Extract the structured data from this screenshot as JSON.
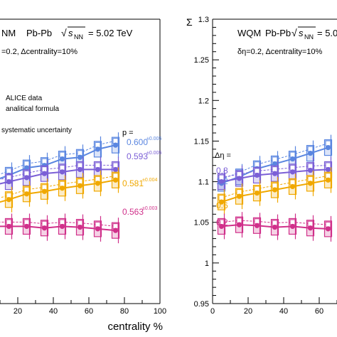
{
  "chart_data": [
    {
      "type": "scatter",
      "panel": "left",
      "title_model": "NM",
      "title_system": "Pb-Pb",
      "energy_label": "= 5.02 TeV",
      "params": "=0.2, Δcentrality=10%",
      "legend": [
        "ALICE data",
        "analitical formula",
        "systematic uncertainty"
      ],
      "p_header": "p =",
      "series_labels": [
        {
          "value": "0.600",
          "unc": "±0.005",
          "color": "#5a86e0"
        },
        {
          "value": "0.593",
          "unc": "±0.005",
          "color": "#7b5fd6"
        },
        {
          "value": "0.581",
          "unc": "±0.004",
          "color": "#f0a800"
        },
        {
          "value": "0.563",
          "unc": "±0.003",
          "color": "#d0308a"
        }
      ],
      "xlabel": "centrality %",
      "xticks": [
        "20",
        "40",
        "60",
        "80",
        "100"
      ],
      "xlim": [
        0,
        100
      ],
      "ylim": [
        0.95,
        1.3
      ],
      "series": [
        {
          "name": "0.600",
          "color": "#5a86e0",
          "x": [
            5,
            15,
            25,
            35,
            45,
            55,
            65,
            75
          ],
          "y": [
            1.1,
            1.108,
            1.117,
            1.12,
            1.128,
            1.13,
            1.14,
            1.145
          ]
        },
        {
          "name": "0.593",
          "color": "#7b5fd6",
          "x": [
            5,
            15,
            25,
            35,
            45,
            55,
            65,
            75
          ],
          "y": [
            1.095,
            1.1,
            1.105,
            1.11,
            1.112,
            1.115,
            1.115,
            1.115
          ]
        },
        {
          "name": "0.581",
          "color": "#f0a800",
          "x": [
            5,
            15,
            25,
            35,
            45,
            55,
            65,
            75
          ],
          "y": [
            1.072,
            1.078,
            1.085,
            1.088,
            1.092,
            1.095,
            1.098,
            1.102
          ]
        },
        {
          "name": "0.563",
          "color": "#d0308a",
          "x": [
            5,
            15,
            25,
            35,
            45,
            55,
            65,
            75
          ],
          "y": [
            1.045,
            1.045,
            1.045,
            1.043,
            1.045,
            1.044,
            1.042,
            1.04
          ]
        }
      ]
    },
    {
      "type": "scatter",
      "panel": "right",
      "title_model": "WQM",
      "title_system": "Pb-Pb",
      "energy_label": "= 5.02",
      "params": "δη=0.2, Δcentrality=10%",
      "ylabel": "Σ",
      "yticks": [
        "0.95",
        "1",
        "1.05",
        "1.1",
        "1.15",
        "1.2",
        "1.25",
        "1.3"
      ],
      "ylim": [
        0.95,
        1.3
      ],
      "xticks": [
        "0",
        "20",
        "40",
        "60"
      ],
      "xlim": [
        0,
        100
      ],
      "deta_header": "Δη =",
      "series_labels": [
        {
          "value": "0.8",
          "color": "#7b5fd6"
        },
        {
          "value": "1.2",
          "color": "#5a86e0"
        },
        {
          "value": "0.6",
          "color": "#f0a800"
        },
        {
          "value": "0.2",
          "color": "#d0308a"
        }
      ],
      "series": [
        {
          "name": "1.2",
          "color": "#5a86e0",
          "x": [
            5,
            15,
            25,
            35,
            45,
            55,
            65
          ],
          "y": [
            1.098,
            1.106,
            1.116,
            1.122,
            1.128,
            1.135,
            1.142
          ]
        },
        {
          "name": "0.8",
          "color": "#7b5fd6",
          "x": [
            5,
            15,
            25,
            35,
            45,
            55,
            65
          ],
          "y": [
            1.1,
            1.104,
            1.108,
            1.11,
            1.112,
            1.114,
            1.115
          ]
        },
        {
          "name": "0.6",
          "color": "#f0a800",
          "x": [
            5,
            15,
            25,
            35,
            45,
            55,
            65
          ],
          "y": [
            1.075,
            1.082,
            1.086,
            1.09,
            1.094,
            1.098,
            1.102
          ]
        },
        {
          "name": "0.2",
          "color": "#d0308a",
          "x": [
            5,
            15,
            25,
            35,
            45,
            55,
            65
          ],
          "y": [
            1.045,
            1.047,
            1.046,
            1.044,
            1.045,
            1.043,
            1.042
          ]
        }
      ]
    }
  ]
}
